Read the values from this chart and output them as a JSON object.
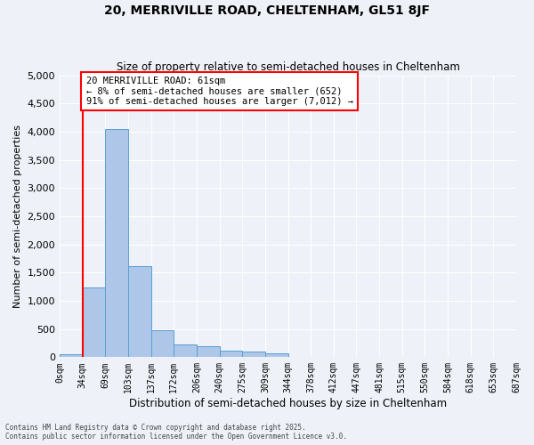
{
  "title_line1": "20, MERRIVILLE ROAD, CHELTENHAM, GL51 8JF",
  "title_line2": "Size of property relative to semi-detached houses in Cheltenham",
  "xlabel": "Distribution of semi-detached houses by size in Cheltenham",
  "ylabel": "Number of semi-detached properties",
  "bin_labels": [
    "0sqm",
    "34sqm",
    "69sqm",
    "103sqm",
    "137sqm",
    "172sqm",
    "206sqm",
    "240sqm",
    "275sqm",
    "309sqm",
    "344sqm",
    "378sqm",
    "412sqm",
    "447sqm",
    "481sqm",
    "515sqm",
    "550sqm",
    "584sqm",
    "618sqm",
    "653sqm",
    "687sqm"
  ],
  "bar_values": [
    50,
    1230,
    4050,
    1620,
    480,
    230,
    190,
    120,
    95,
    75,
    0,
    0,
    0,
    0,
    0,
    0,
    0,
    0,
    0,
    0
  ],
  "bar_color": "#aec6e8",
  "bar_edge_color": "#5a9fd4",
  "property_line_x": 1.0,
  "annotation_title": "20 MERRIVILLE ROAD: 61sqm",
  "annotation_line1": "← 8% of semi-detached houses are smaller (652)",
  "annotation_line2": "91% of semi-detached houses are larger (7,012) →",
  "annotation_box_color": "white",
  "annotation_box_edge_color": "red",
  "vline_color": "red",
  "ylim": [
    0,
    5000
  ],
  "yticks": [
    0,
    500,
    1000,
    1500,
    2000,
    2500,
    3000,
    3500,
    4000,
    4500,
    5000
  ],
  "footer_line1": "Contains HM Land Registry data © Crown copyright and database right 2025.",
  "footer_line2": "Contains public sector information licensed under the Open Government Licence v3.0.",
  "bg_color": "#eef2f8",
  "grid_color": "white",
  "n_bars": 20
}
